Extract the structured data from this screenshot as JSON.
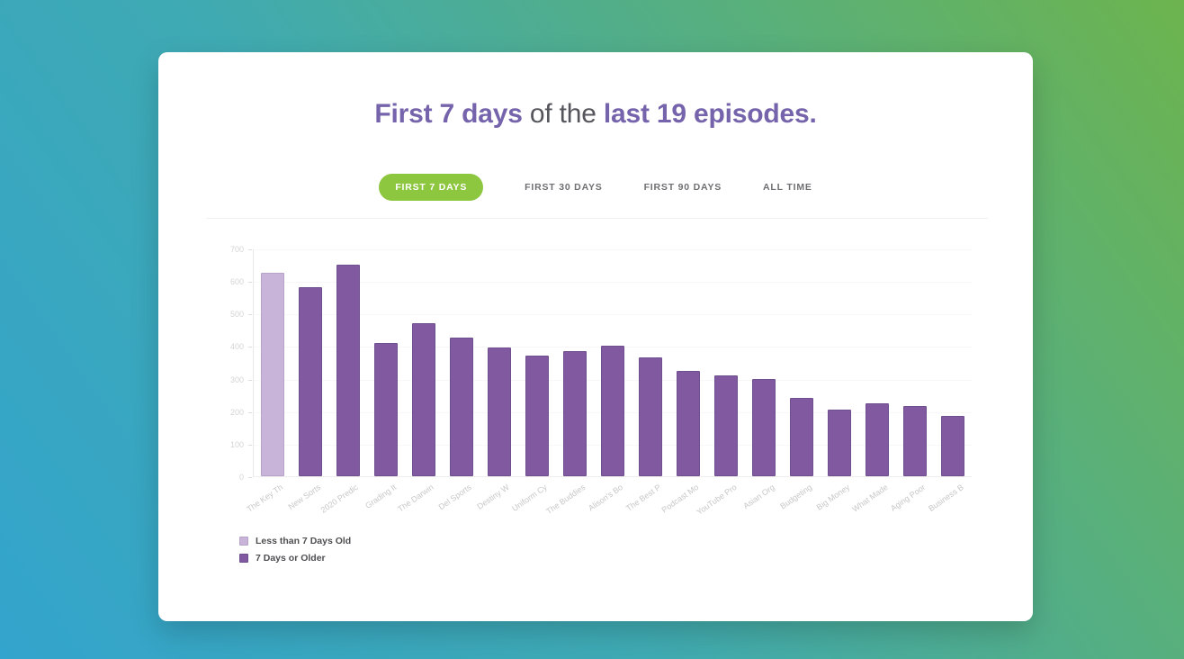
{
  "page": {
    "background_gradient": {
      "from": "#33a4cd",
      "mid": "#3faab2",
      "to": "#6db44e"
    },
    "card_color": "#ffffff"
  },
  "header": {
    "title_segments": [
      {
        "text": "First 7 days",
        "style": "accent"
      },
      {
        "text": " of the ",
        "style": "muted"
      },
      {
        "text": "last 19 episodes.",
        "style": "accent"
      }
    ]
  },
  "tabs": [
    {
      "label": "FIRST 7 DAYS",
      "active": true
    },
    {
      "label": "FIRST 30 DAYS",
      "active": false
    },
    {
      "label": "FIRST 90 DAYS",
      "active": false
    },
    {
      "label": "ALL TIME",
      "active": false
    }
  ],
  "colors": {
    "accent_purple": "#7564ab",
    "muted_gray": "#55565c",
    "tab_active_bg": "#8dc63f",
    "tab_text": "#6e6f72",
    "bar_new": "#c9b4d9",
    "bar_old": "#8159a1",
    "axis_text": "#d5d5d6"
  },
  "chart_data": {
    "type": "bar",
    "title": "First 7 days of the last 19 episodes.",
    "xlabel": "",
    "ylabel": "",
    "ylim": [
      0,
      700
    ],
    "yticks": [
      0,
      100,
      200,
      300,
      400,
      500,
      600,
      700
    ],
    "grid": "faint horizontal gridlines, light vertical y-axis line",
    "legend_position": "bottom-left",
    "categories": [
      "The Key Th",
      "New Sorts",
      "2020 Predic",
      "Grading It",
      "The Darwin",
      "Del Sports",
      "Destiny W",
      "Uniform Cy",
      "The Buddies",
      "Alison's Bo",
      "The Best P",
      "Podcast Mo",
      "YouTube Pro",
      "Asian Org",
      "Budgeting",
      "Big Money",
      "What Made",
      "Aging Poor",
      "Business B"
    ],
    "values": [
      625,
      580,
      650,
      410,
      470,
      425,
      395,
      370,
      385,
      400,
      365,
      325,
      310,
      300,
      240,
      205,
      225,
      215,
      185
    ],
    "groups": [
      "less_than_7_days",
      "7_days_or_older",
      "7_days_or_older",
      "7_days_or_older",
      "7_days_or_older",
      "7_days_or_older",
      "7_days_or_older",
      "7_days_or_older",
      "7_days_or_older",
      "7_days_or_older",
      "7_days_or_older",
      "7_days_or_older",
      "7_days_or_older",
      "7_days_or_older",
      "7_days_or_older",
      "7_days_or_older",
      "7_days_or_older",
      "7_days_or_older",
      "7_days_or_older"
    ],
    "legend": [
      {
        "label": "Less than 7 Days Old",
        "color": "#c9b4d9",
        "border": "#b7a2ca"
      },
      {
        "label": "7 Days or Older",
        "color": "#8159a1",
        "border": "#6f4f8d"
      }
    ]
  }
}
